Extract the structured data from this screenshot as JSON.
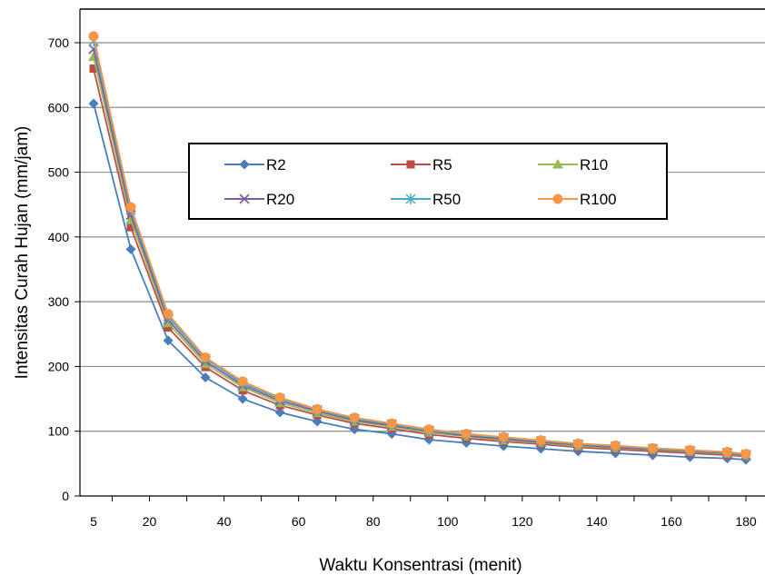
{
  "chart_data": {
    "type": "line",
    "xlabel": "Waktu Konsentrasi  (menit)",
    "ylabel": "Intensitas  Curah  Hujan  (mm/jam)",
    "xlim": [
      0,
      180
    ],
    "ylim": [
      0,
      700
    ],
    "x_ticks": [
      5,
      20,
      40,
      60,
      80,
      100,
      120,
      140,
      160,
      180
    ],
    "y_ticks": [
      0,
      100,
      200,
      300,
      400,
      500,
      600,
      700
    ],
    "grid": "horizontal",
    "legend_position": "center-top",
    "x": [
      5,
      15,
      25,
      35,
      45,
      55,
      65,
      75,
      85,
      95,
      105,
      115,
      125,
      135,
      145,
      155,
      165,
      175,
      185
    ],
    "series": [
      {
        "name": "R2",
        "color": "#4A7EBB",
        "marker": "diamond",
        "values": [
          606,
          381,
          240,
          183,
          150,
          129,
          115,
          103,
          96,
          87,
          82,
          77,
          73,
          69,
          66,
          63,
          60,
          58,
          56
        ]
      },
      {
        "name": "R5",
        "color": "#BE4B48",
        "marker": "square",
        "values": [
          660,
          415,
          260,
          199,
          163,
          140,
          125,
          112,
          104,
          95,
          89,
          84,
          80,
          75,
          72,
          69,
          66,
          63,
          61
        ]
      },
      {
        "name": "R10",
        "color": "#98B954",
        "marker": "triangle",
        "values": [
          678,
          426,
          267,
          204,
          168,
          144,
          128,
          115,
          107,
          98,
          92,
          86,
          82,
          77,
          74,
          71,
          68,
          65,
          62
        ]
      },
      {
        "name": "R20",
        "color": "#7D60A0",
        "marker": "x",
        "values": [
          690,
          434,
          272,
          208,
          171,
          147,
          131,
          117,
          109,
          100,
          93,
          88,
          83,
          79,
          75,
          72,
          69,
          66,
          63
        ]
      },
      {
        "name": "R50",
        "color": "#46AAC5",
        "marker": "star",
        "values": [
          703,
          442,
          277,
          212,
          174,
          150,
          133,
          119,
          111,
          101,
          95,
          90,
          85,
          80,
          77,
          73,
          70,
          67,
          64
        ]
      },
      {
        "name": "R100",
        "color": "#F79646",
        "marker": "circle",
        "values": [
          710,
          446,
          281,
          214,
          177,
          152,
          134,
          121,
          112,
          103,
          96,
          91,
          86,
          81,
          78,
          74,
          71,
          68,
          65
        ]
      }
    ]
  }
}
